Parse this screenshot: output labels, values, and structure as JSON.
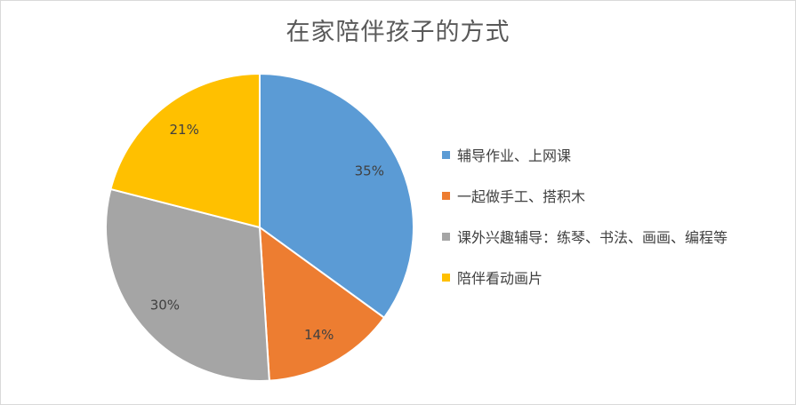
{
  "chart_data": {
    "type": "pie",
    "title": "在家陪伴孩子的方式",
    "slices": [
      {
        "label": "辅导作业、上网课",
        "value": 35,
        "data_label": "35%",
        "color": "#5b9bd5"
      },
      {
        "label": "一起做手工、搭积木",
        "value": 14,
        "data_label": "14%",
        "color": "#ed7d31"
      },
      {
        "label": "课外兴趣辅导：练琴、书法、画画、编程等",
        "value": 30,
        "data_label": "30%",
        "color": "#a5a5a5"
      },
      {
        "label": "陪伴看动画片",
        "value": 21,
        "data_label": "21%",
        "color": "#ffc000"
      }
    ],
    "legend_position": "right"
  }
}
